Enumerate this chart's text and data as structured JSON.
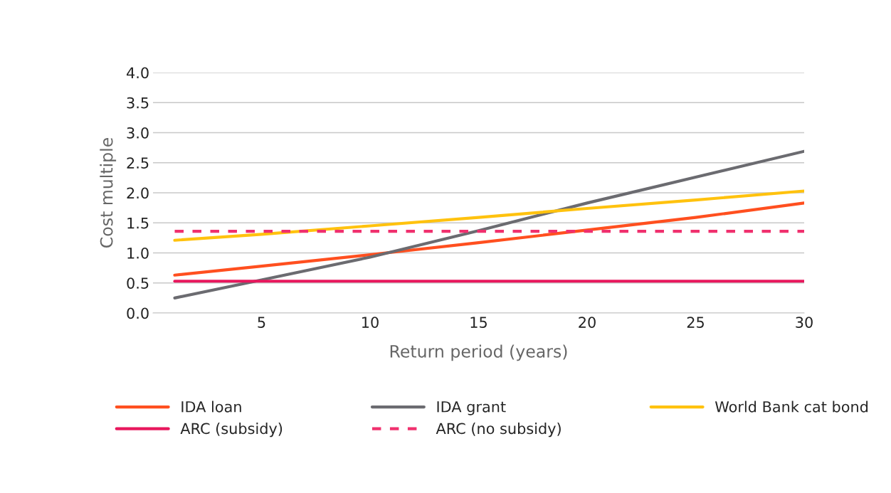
{
  "chart_data": {
    "type": "line",
    "xlabel": "Return period (years)",
    "ylabel": "Cost multiple",
    "x": [
      1,
      5,
      10,
      15,
      20,
      25,
      30
    ],
    "series": [
      {
        "name": "IDA loan",
        "color": "#ff4f1f",
        "values": [
          0.63,
          0.78,
          0.97,
          1.17,
          1.38,
          1.59,
          1.83
        ]
      },
      {
        "name": "IDA grant",
        "color": "#6b6b70",
        "values": [
          0.25,
          0.55,
          0.93,
          1.37,
          1.83,
          2.26,
          2.69
        ]
      },
      {
        "name": "World Bank cat bond",
        "color": "#ffc20e",
        "values": [
          1.21,
          1.31,
          1.45,
          1.59,
          1.74,
          1.88,
          2.03
        ]
      },
      {
        "name": "ARC (subsidy)",
        "color": "#e8175d",
        "values": [
          0.53,
          0.53,
          0.53,
          0.53,
          0.53,
          0.53,
          0.53
        ]
      },
      {
        "name": "ARC (no subsidy)",
        "color": "#f0306e",
        "line_style": "dashed",
        "values": [
          1.36,
          1.36,
          1.36,
          1.36,
          1.36,
          1.36,
          1.36
        ]
      }
    ],
    "xlim": [
      0,
      30
    ],
    "xticks": [
      5,
      10,
      15,
      20,
      25,
      30
    ],
    "ylim": [
      0,
      4
    ],
    "yticks": [
      {
        "value": 0,
        "label": "0.0"
      },
      {
        "value": 0.5,
        "label": "0.5"
      },
      {
        "value": 1,
        "label": "1.0"
      },
      {
        "value": 1.5,
        "label": "1.5"
      },
      {
        "value": 2,
        "label": "2.0"
      },
      {
        "value": 2.5,
        "label": "2.5"
      },
      {
        "value": 3,
        "label": "3.0"
      },
      {
        "value": 3.5,
        "label": "3.5"
      },
      {
        "value": 4,
        "label": "4.0"
      }
    ],
    "grid": "y",
    "legend": "bottom",
    "marker": "none",
    "line_style": "solid"
  }
}
